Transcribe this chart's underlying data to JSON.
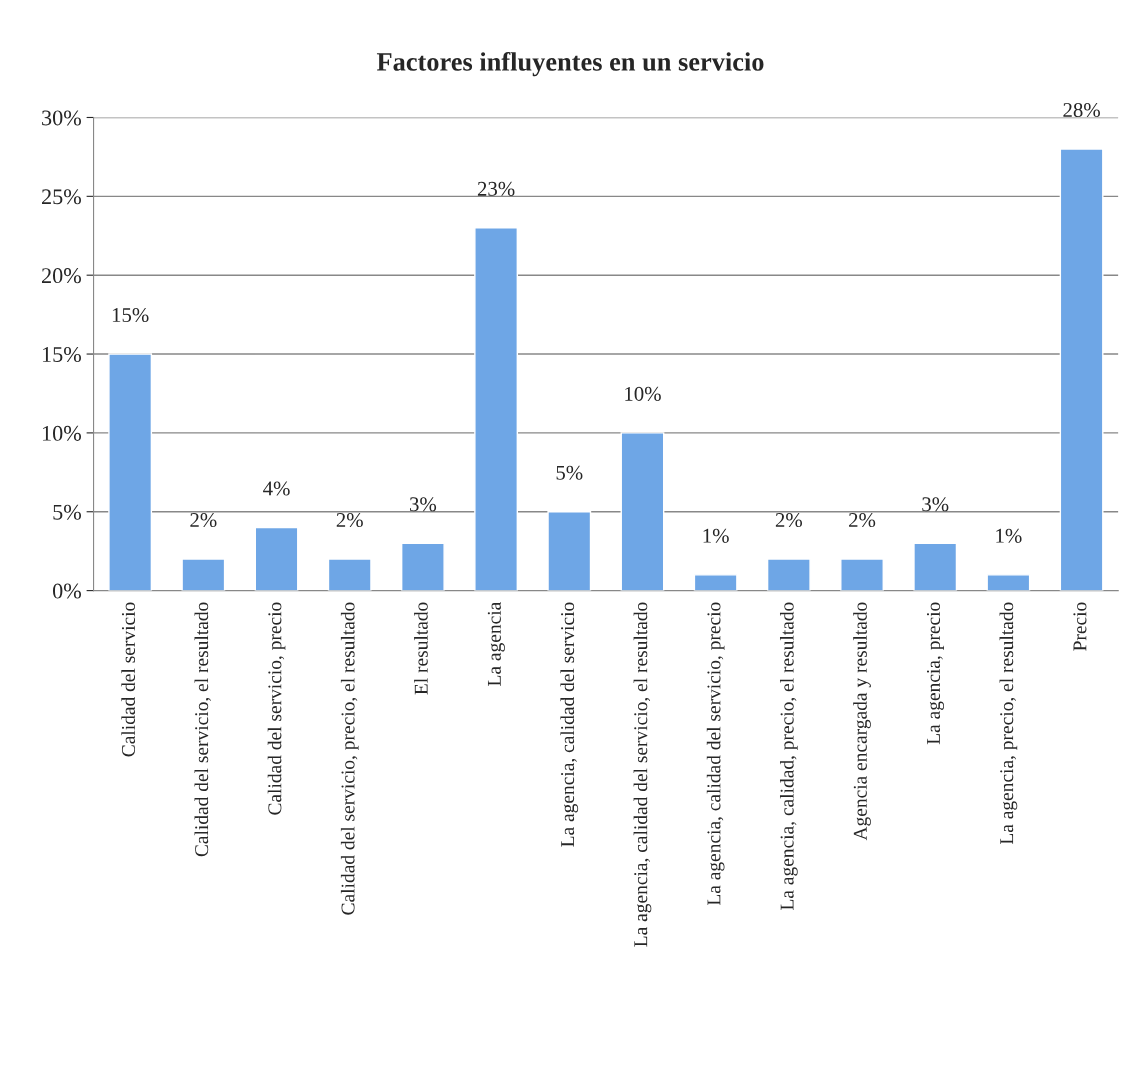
{
  "chart_data": {
    "type": "bar",
    "title": "Factores influyentes en un servicio",
    "categories": [
      "Calidad del servicio",
      "Calidad del servicio, el resultado",
      "Calidad del servicio, precio",
      "Calidad del servicio, precio, el resultado",
      "El resultado",
      "La agencia",
      "La agencia, calidad del servicio",
      "La agencia, calidad del servicio, el resultado",
      "La agencia, calidad del servicio, precio",
      "La agencia, calidad, precio, el resultado",
      "Agencia encargada y resultado",
      "La agencia, precio",
      "La agencia, precio, el resultado",
      "Precio"
    ],
    "values": [
      15,
      2,
      4,
      2,
      3,
      23,
      5,
      10,
      1,
      2,
      2,
      3,
      1,
      28
    ],
    "value_labels": [
      "15%",
      "2%",
      "4%",
      "2%",
      "3%",
      "23%",
      "5%",
      "10%",
      "1%",
      "2%",
      "2%",
      "3%",
      "1%",
      "28%"
    ],
    "color": "#6ea6e6",
    "ylim": [
      0,
      30
    ],
    "yticks": [
      {
        "value": 0,
        "label": "0%"
      },
      {
        "value": 5,
        "label": "5%"
      },
      {
        "value": 10,
        "label": "10%"
      },
      {
        "value": 15,
        "label": "15%"
      },
      {
        "value": 20,
        "label": "20%"
      },
      {
        "value": 25,
        "label": "25%"
      },
      {
        "value": 30,
        "label": "30%"
      }
    ],
    "grid": "y"
  }
}
